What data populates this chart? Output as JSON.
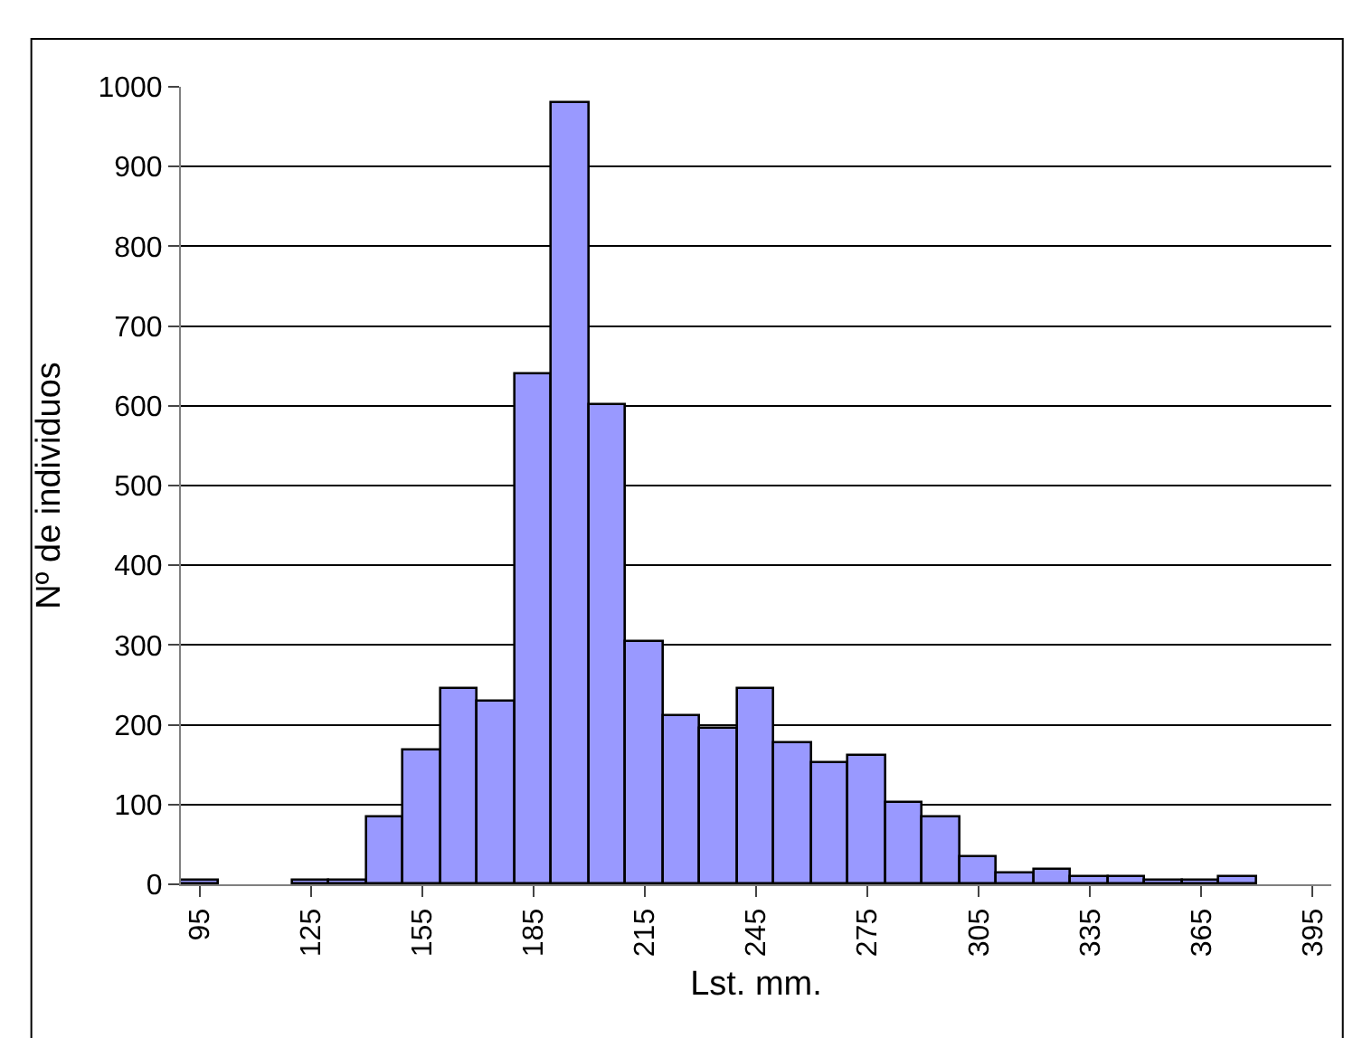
{
  "chart_data": {
    "type": "bar",
    "xlabel": "Lst. mm.",
    "ylabel": "Nº de individuos",
    "categories": [
      "95",
      null,
      null,
      "125",
      null,
      null,
      "155",
      null,
      null,
      "185",
      null,
      null,
      "215",
      null,
      null,
      "245",
      null,
      null,
      "275",
      null,
      null,
      "305",
      null,
      null,
      "335",
      null,
      null,
      "365",
      null,
      null,
      "395"
    ],
    "values": [
      5,
      0,
      0,
      5,
      5,
      85,
      168,
      245,
      230,
      640,
      980,
      600,
      303,
      210,
      195,
      244,
      176,
      152,
      160,
      102,
      83,
      34,
      14,
      19,
      10,
      10,
      5,
      5,
      10,
      0,
      0
    ],
    "color": "#9999ff",
    "ylim": [
      0,
      1000
    ],
    "yticks": [
      0,
      100,
      200,
      300,
      400,
      500,
      600,
      700,
      800,
      900,
      1000
    ],
    "grid": "y"
  }
}
